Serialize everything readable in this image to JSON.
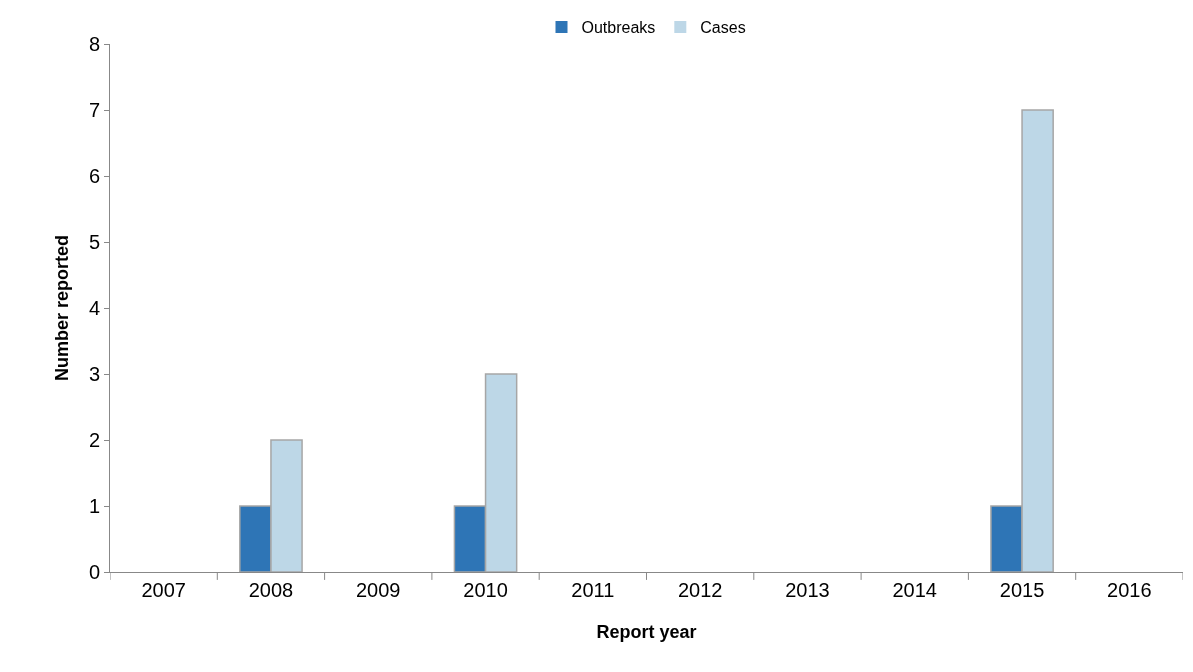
{
  "chart_data": {
    "type": "bar",
    "xlabel": "Report year",
    "ylabel": "Number reported",
    "categories": [
      "2007",
      "2008",
      "2009",
      "2010",
      "2011",
      "2012",
      "2013",
      "2014",
      "2015",
      "2016"
    ],
    "series": [
      {
        "name": "Outbreaks",
        "color": "#2e75b6",
        "values": [
          0,
          1,
          0,
          1,
          0,
          0,
          0,
          0,
          1,
          0
        ]
      },
      {
        "name": "Cases",
        "color": "#bdd7e7",
        "values": [
          0,
          2,
          0,
          3,
          0,
          0,
          0,
          0,
          7,
          0
        ]
      }
    ],
    "ylim": [
      0,
      8
    ],
    "yticks": [
      0,
      1,
      2,
      3,
      4,
      5,
      6,
      7,
      8
    ],
    "legend": "top"
  }
}
